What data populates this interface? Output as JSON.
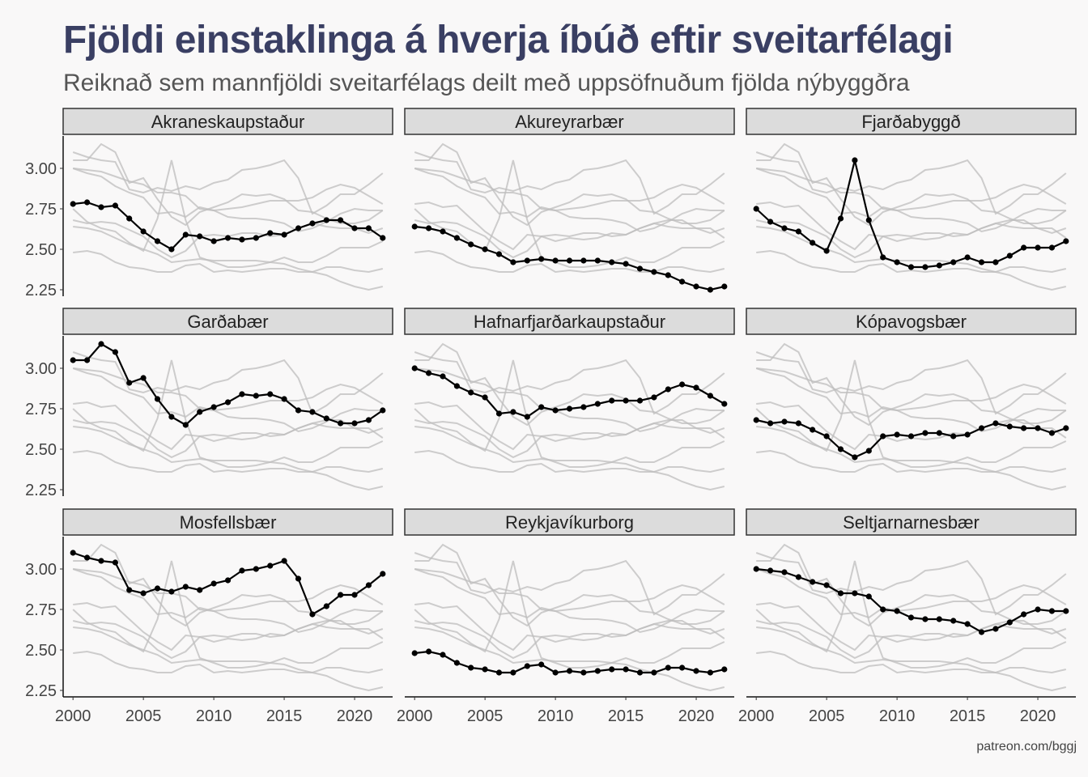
{
  "title": "Fjöldi einstaklinga á hverja íbúð eftir sveitarfélagi",
  "subtitle": "Reiknað sem mannfjöldi sveitarfélags deilt með uppsöfnuðum fjölda nýbyggðra",
  "caption": "patreon.com/bggj",
  "colors": {
    "title": "#3a3f63",
    "highlight": "#000000",
    "background_line": "#bdbdbd",
    "strip": "#dcdcdc",
    "background": "#f9f8f8"
  },
  "chart_data": {
    "type": "line",
    "layout": "facet-grid 3x3",
    "x": [
      2000,
      2001,
      2002,
      2003,
      2004,
      2005,
      2006,
      2007,
      2008,
      2009,
      2010,
      2011,
      2012,
      2013,
      2014,
      2015,
      2016,
      2017,
      2018,
      2019,
      2020,
      2021,
      2022
    ],
    "xticks": [
      2000,
      2005,
      2010,
      2015,
      2020
    ],
    "xlim": [
      1999.3,
      2022.7
    ],
    "ylim": [
      2.21,
      3.2
    ],
    "yticks": [
      2.25,
      2.5,
      2.75,
      3.0
    ],
    "ytick_labels": [
      "2.25",
      "2.50",
      "2.75",
      "3.00"
    ],
    "series": [
      {
        "name": "Akraneskaupstaður",
        "values": [
          2.78,
          2.79,
          2.76,
          2.77,
          2.69,
          2.61,
          2.55,
          2.5,
          2.59,
          2.58,
          2.55,
          2.57,
          2.56,
          2.57,
          2.6,
          2.59,
          2.63,
          2.66,
          2.68,
          2.68,
          2.63,
          2.63,
          2.57
        ]
      },
      {
        "name": "Akureyrarbær",
        "values": [
          2.64,
          2.63,
          2.61,
          2.57,
          2.53,
          2.5,
          2.47,
          2.42,
          2.43,
          2.44,
          2.43,
          2.43,
          2.43,
          2.43,
          2.42,
          2.41,
          2.38,
          2.36,
          2.34,
          2.3,
          2.27,
          2.25,
          2.27
        ]
      },
      {
        "name": "Fjarðabyggð",
        "values": [
          2.75,
          2.67,
          2.63,
          2.61,
          2.54,
          2.49,
          2.69,
          3.05,
          2.68,
          2.45,
          2.42,
          2.39,
          2.39,
          2.4,
          2.42,
          2.45,
          2.42,
          2.42,
          2.46,
          2.51,
          2.51,
          2.51,
          2.55
        ]
      },
      {
        "name": "Garðabær",
        "values": [
          3.05,
          3.05,
          3.15,
          3.1,
          2.91,
          2.94,
          2.81,
          2.7,
          2.65,
          2.73,
          2.76,
          2.79,
          2.84,
          2.83,
          2.84,
          2.81,
          2.74,
          2.73,
          2.69,
          2.66,
          2.66,
          2.68,
          2.74
        ]
      },
      {
        "name": "Hafnarfjarðarkaupstaður",
        "values": [
          3.0,
          2.97,
          2.95,
          2.89,
          2.85,
          2.82,
          2.72,
          2.73,
          2.7,
          2.76,
          2.74,
          2.75,
          2.76,
          2.78,
          2.8,
          2.8,
          2.8,
          2.82,
          2.87,
          2.9,
          2.88,
          2.83,
          2.78
        ]
      },
      {
        "name": "Kópavogsbær",
        "values": [
          2.68,
          2.66,
          2.67,
          2.66,
          2.62,
          2.58,
          2.5,
          2.45,
          2.49,
          2.58,
          2.59,
          2.58,
          2.6,
          2.6,
          2.58,
          2.59,
          2.63,
          2.66,
          2.64,
          2.63,
          2.63,
          2.6,
          2.63
        ]
      },
      {
        "name": "Mosfellsbær",
        "values": [
          3.1,
          3.07,
          3.05,
          3.04,
          2.87,
          2.85,
          2.88,
          2.86,
          2.89,
          2.87,
          2.91,
          2.93,
          2.99,
          3.0,
          3.02,
          3.05,
          2.94,
          2.72,
          2.77,
          2.84,
          2.84,
          2.9,
          2.97
        ]
      },
      {
        "name": "Reykjavíkurborg",
        "values": [
          2.48,
          2.49,
          2.47,
          2.42,
          2.39,
          2.38,
          2.36,
          2.36,
          2.4,
          2.41,
          2.36,
          2.37,
          2.36,
          2.37,
          2.38,
          2.38,
          2.36,
          2.36,
          2.39,
          2.39,
          2.37,
          2.36,
          2.38
        ]
      },
      {
        "name": "Seltjarnarnesbær",
        "values": [
          3.0,
          2.99,
          2.98,
          2.95,
          2.92,
          2.9,
          2.85,
          2.85,
          2.83,
          2.75,
          2.74,
          2.7,
          2.69,
          2.69,
          2.68,
          2.66,
          2.61,
          2.63,
          2.67,
          2.72,
          2.75,
          2.74,
          2.74
        ]
      }
    ]
  }
}
